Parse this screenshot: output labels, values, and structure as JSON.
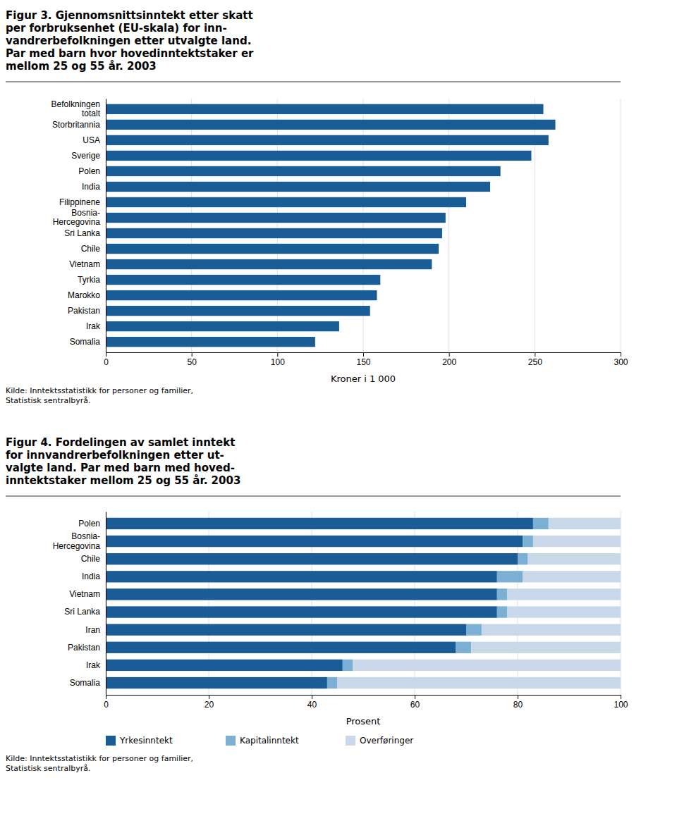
{
  "chart_data": [
    {
      "type": "bar",
      "orientation": "horizontal",
      "title": "Figur 3. Gjennomsnittsinntekt etter skatt\nper forbruksenhet (EU-skala) for inn-\nvandrerbefolkningen etter utvalgte land.\nPar med barn hvor hovedinntektstaker er\nmellom 25 og 55 år. 2003",
      "categories": [
        "Befolkningen\ntotalt",
        "Storbritannia",
        "USA",
        "Sverige",
        "Polen",
        "India",
        "Filippinene",
        "Bosnia-\nHercegovina",
        "Sri Lanka",
        "Chile",
        "Vietnam",
        "Tyrkia",
        "Marokko",
        "Pakistan",
        "Irak",
        "Somalia"
      ],
      "values": [
        255,
        262,
        258,
        248,
        230,
        224,
        210,
        198,
        196,
        194,
        190,
        160,
        158,
        154,
        136,
        122
      ],
      "color": "#1a5c96",
      "xlabel": "Kroner i 1 000",
      "xlim": [
        0,
        300
      ],
      "xticks": [
        0,
        50,
        100,
        150,
        200,
        250,
        300
      ],
      "grid": true,
      "annotations": [
        "Kilde: Inntektsstatistikk for personer og familier,\nStatistisk sentralbyrå."
      ]
    },
    {
      "type": "bar",
      "orientation": "horizontal",
      "stacked": true,
      "title": "Figur 4. Fordelingen av samlet inntekt\nfor innvandrerbefolkningen etter ut-\nvalgte land. Par med barn med hoved-\ninntektstaker mellom 25 og 55 år. 2003",
      "categories": [
        "Polen",
        "Bosnia-\nHercegovina",
        "Chile",
        "India",
        "Vietnam",
        "Sri Lanka",
        "Iran",
        "Pakistan",
        "Irak",
        "Somalia"
      ],
      "series": [
        {
          "name": "Yrkesinntekt",
          "color": "#1a5c96",
          "values": [
            83,
            81,
            80,
            76,
            76,
            76,
            70,
            68,
            46,
            43
          ]
        },
        {
          "name": "Kapitalinntekt",
          "color": "#7bafd4",
          "values": [
            3,
            2,
            2,
            5,
            2,
            2,
            3,
            3,
            2,
            2
          ]
        },
        {
          "name": "Overføringer",
          "color": "#c8d8e8",
          "values": [
            14,
            17,
            18,
            19,
            22,
            22,
            27,
            29,
            52,
            55
          ]
        }
      ],
      "xlabel": "Prosent",
      "xlim": [
        0,
        100
      ],
      "xticks": [
        0,
        20,
        40,
        60,
        80,
        100
      ],
      "grid": true,
      "legend": "bottom",
      "annotations": [
        "Kilde: Inntektsstatistikk for personer og familier,\nStatistisk sentralbyrå."
      ]
    }
  ]
}
